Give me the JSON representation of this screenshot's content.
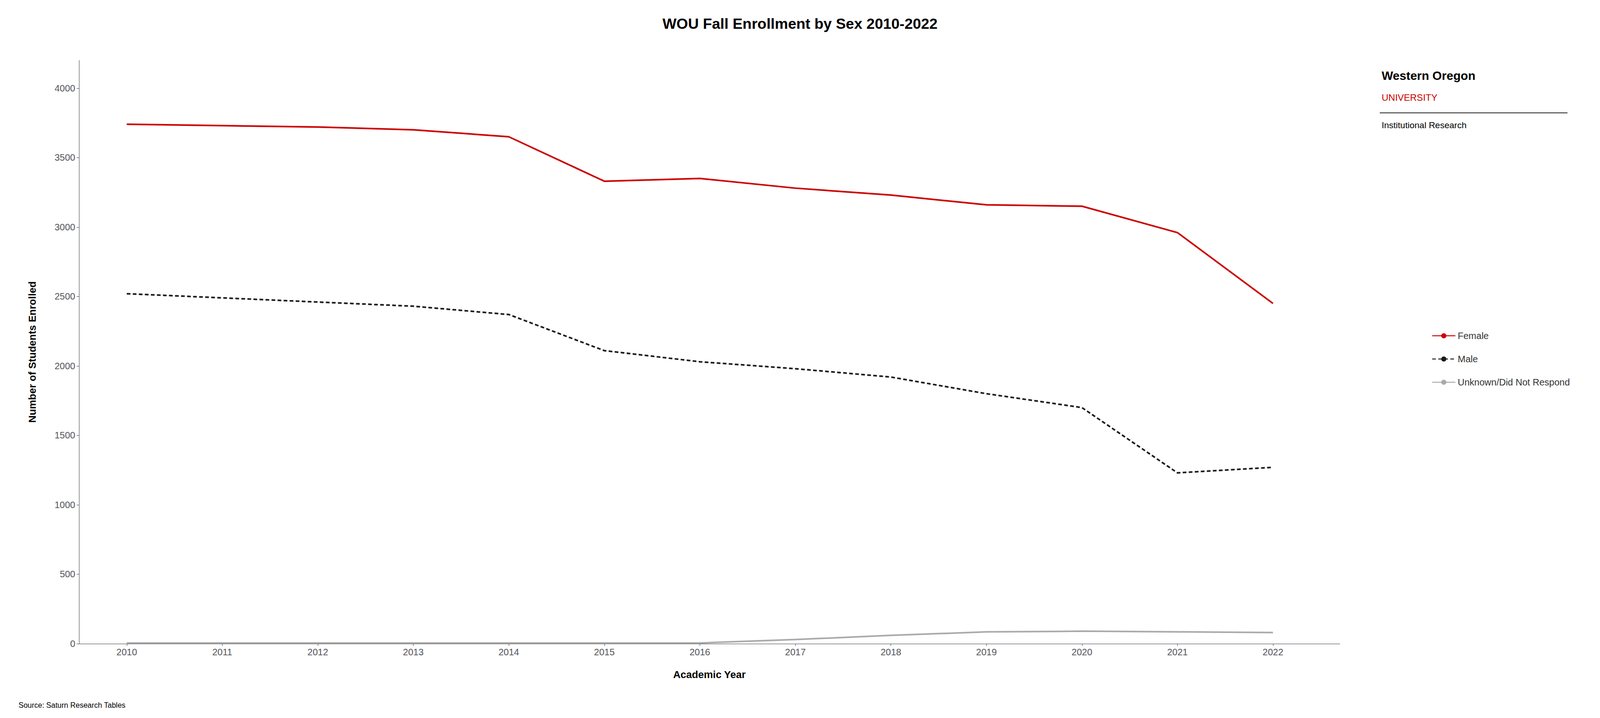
{
  "chart_data": {
    "type": "line",
    "title": "WOU Fall Enrollment by Sex 2010-2022",
    "xlabel": "Academic Year",
    "ylabel": "Number of Students Enrolled",
    "x": [
      2010,
      2011,
      2012,
      2013,
      2014,
      2015,
      2016,
      2017,
      2018,
      2019,
      2020,
      2021,
      2022
    ],
    "series": [
      {
        "name": "Female",
        "color": "#cc0000",
        "line_style": "solid",
        "values": [
          3740,
          3730,
          3720,
          3700,
          3650,
          3330,
          3350,
          3280,
          3230,
          3160,
          3150,
          2960,
          2450
        ]
      },
      {
        "name": "Male",
        "color": "#1a1a1a",
        "line_style": "dashed",
        "values": [
          2520,
          2490,
          2460,
          2430,
          2370,
          2110,
          2030,
          1980,
          1920,
          1800,
          1700,
          1230,
          1270
        ]
      },
      {
        "name": "Unknown/Did Not Respond",
        "color": "#aaaaaa",
        "line_style": "solid",
        "values": [
          5,
          5,
          5,
          5,
          5,
          5,
          5,
          30,
          60,
          85,
          90,
          85,
          80
        ]
      }
    ],
    "xlim": [
      2009.5,
      2022.7
    ],
    "xticks": [
      2010,
      2011,
      2012,
      2013,
      2014,
      2015,
      2016,
      2017,
      2018,
      2019,
      2020,
      2021,
      2022
    ],
    "ylim": [
      0,
      4200
    ],
    "yticks": [
      0,
      500,
      1000,
      1500,
      2000,
      2500,
      3000,
      3500,
      4000
    ],
    "grid": false,
    "legend": "right",
    "annotations": [
      "Source: Saturn Research Tables",
      "Western Oregon",
      "UNIVERSITY",
      "Institutional Research"
    ]
  }
}
